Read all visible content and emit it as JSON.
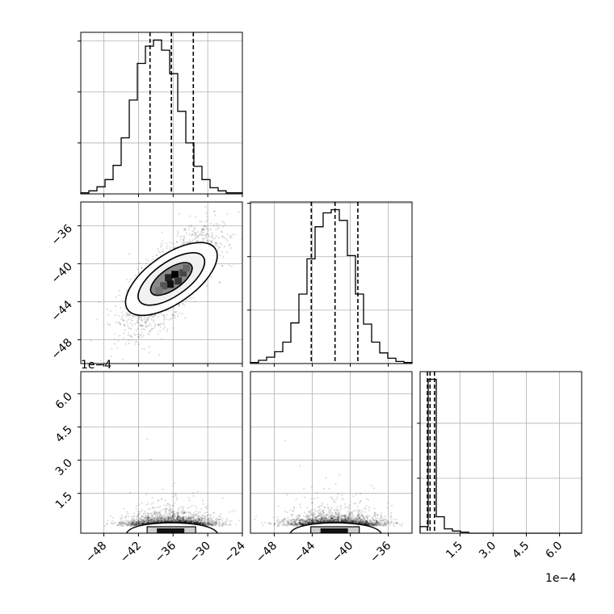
{
  "chart_data": {
    "type": "corner",
    "parameters": [
      {
        "range": [
          -52,
          -24
        ],
        "ticks": [
          -48,
          -42,
          -36,
          -30,
          -24
        ],
        "tick_labels": [
          "−48",
          "−42",
          "−36",
          "−30",
          "−24"
        ],
        "quantiles": [
          -40,
          -36.3,
          -32.5
        ]
      },
      {
        "range": [
          -50.5,
          -33.5
        ],
        "ticks": [
          -48,
          -44,
          -40,
          -36
        ],
        "tick_labels": [
          "−48",
          "−44",
          "−40",
          "−36"
        ],
        "quantiles": [
          -44.1,
          -41.6,
          -39.2
        ]
      },
      {
        "range": [
          -0.3,
          7.0
        ],
        "ticks": [
          1.5,
          3.0,
          4.5,
          6.0
        ],
        "tick_labels": [
          "1.5",
          "3.0",
          "4.5",
          "6.0"
        ],
        "quantiles": [
          0.03,
          0.15,
          0.35
        ]
      }
    ],
    "offset_labels": {
      "row1_y": "1e−4",
      "col2_x": "1e−4"
    },
    "histograms": [
      {
        "edges_start": -52,
        "bin_width": 1.4,
        "counts": [
          1,
          3,
          7,
          14,
          28,
          55,
          92,
          128,
          145,
          151,
          141,
          118,
          81,
          50,
          27,
          14,
          6,
          3,
          1,
          1
        ]
      },
      {
        "edges_start": -50.5,
        "bin_width": 0.85,
        "counts": [
          1,
          3,
          6,
          11,
          20,
          38,
          65,
          98,
          128,
          141,
          144,
          134,
          101,
          65,
          37,
          20,
          10,
          5,
          2,
          1
        ]
      },
      {
        "edges_start": -0.3,
        "bin_width": 0.365,
        "counts": [
          6,
          140,
          15,
          4,
          2,
          1,
          0,
          0,
          0,
          0,
          0,
          0,
          0,
          0,
          0,
          0,
          0,
          0,
          0,
          0
        ]
      }
    ],
    "pairs": [
      {
        "x_param": 0,
        "y_param": 1,
        "x_mean": -36.3,
        "y_mean": -41.6,
        "x_sd": 3.7,
        "y_sd": 2.5,
        "corr": 0.72
      },
      {
        "x_param": 0,
        "y_param": 2,
        "x_mean": -36.3,
        "y_mean": 0.12,
        "x_sd": 3.7,
        "y_sd": 0.35
      },
      {
        "x_param": 1,
        "y_param": 2,
        "x_mean": -41.6,
        "y_mean": 0.12,
        "x_sd": 2.5,
        "y_sd": 0.35
      }
    ],
    "grid": true
  }
}
